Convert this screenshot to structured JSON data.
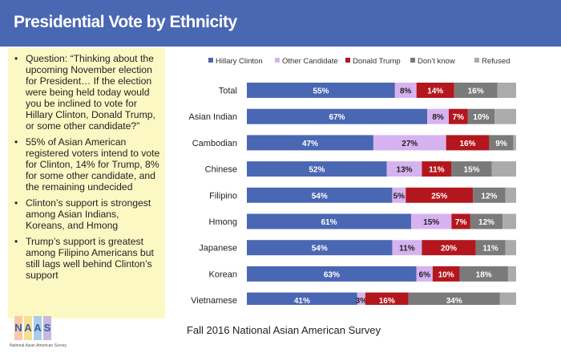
{
  "title": "Presidential Vote by Ethnicity",
  "bullets": [
    "Question: “Thinking about the upcoming November election for President… If the election were being held today would you be inclined to vote for Hillary Clinton, Donald Trump, or some other candidate?”",
    "55% of Asian American registered voters intend to vote for Clinton, 14% for Trump, 8% for some other candidate, and the remaining undecided",
    "Clinton’s support is strongest among Asian Indians, Koreans, and Hmong",
    "Trump’s support is greatest among Filipino Americans but still lags well behind Clinton’s support"
  ],
  "footer": "Fall 2016 National Asian American Survey",
  "logo": {
    "letters": [
      "N",
      "A",
      "A",
      "S"
    ],
    "subtitle": "National Asian American Survey"
  },
  "colors": {
    "header": "#4a67b3",
    "bullet_bg": "#fcf8c4"
  },
  "chart_data": {
    "type": "bar",
    "orientation": "horizontal",
    "stacked": true,
    "categories": [
      "Total",
      "Asian Indian",
      "Cambodian",
      "Chinese",
      "Filipino",
      "Hmong",
      "Japanese",
      "Korean",
      "Vietnamese"
    ],
    "series": [
      {
        "name": "Hillary Clinton",
        "color": "#4a67b3",
        "label_color": "#ffffff",
        "values": [
          55,
          67,
          47,
          52,
          54,
          61,
          54,
          63,
          41
        ]
      },
      {
        "name": "Other Candidate",
        "color": "#d6b3f0",
        "label_color": "#222222",
        "values": [
          8,
          8,
          27,
          13,
          5,
          15,
          11,
          6,
          3
        ]
      },
      {
        "name": "Donald Trump",
        "color": "#b3171d",
        "label_color": "#ffffff",
        "values": [
          14,
          7,
          16,
          11,
          25,
          7,
          20,
          10,
          16
        ]
      },
      {
        "name": "Don't know",
        "color": "#7a7a7a",
        "label_color": "#ffffff",
        "values": [
          16,
          10,
          9,
          15,
          12,
          12,
          11,
          18,
          34
        ]
      },
      {
        "name": "Refused",
        "color": "#ababab",
        "label_color": "#ffffff",
        "values": [
          7,
          8,
          1,
          9,
          4,
          5,
          4,
          3,
          6
        ]
      }
    ],
    "labels": [
      [
        "55%",
        "8%",
        "14%",
        "16%",
        ""
      ],
      [
        "67%",
        "8%",
        "7%",
        "10%",
        ""
      ],
      [
        "47%",
        "27%",
        "16%",
        "9%",
        ""
      ],
      [
        "52%",
        "13%",
        "11%",
        "15%",
        ""
      ],
      [
        "54%",
        "5%",
        "25%",
        "12%",
        ""
      ],
      [
        "61%",
        "15%",
        "7%",
        "12%",
        ""
      ],
      [
        "54%",
        "11%",
        "20%",
        "11%",
        ""
      ],
      [
        "63%",
        "6%",
        "10%",
        "18%",
        ""
      ],
      [
        "41%",
        "3%",
        "16%",
        "34%",
        ""
      ]
    ],
    "xlim": [
      0,
      100
    ],
    "legend_position": "top"
  }
}
